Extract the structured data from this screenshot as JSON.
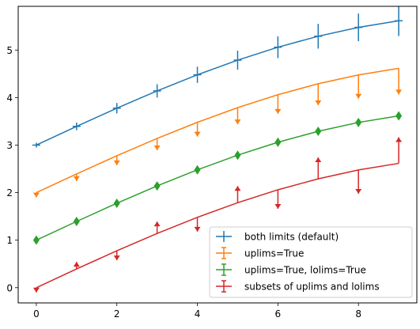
{
  "chart_data": {
    "type": "line",
    "x": [
      0,
      1,
      2,
      3,
      4,
      5,
      6,
      7,
      8,
      9
    ],
    "xlim": [
      -0.45,
      9.45
    ],
    "ylim": [
      -0.32,
      5.92
    ],
    "xticks": [
      0,
      2,
      4,
      6,
      8
    ],
    "yticks": [
      0,
      1,
      2,
      3,
      4,
      5
    ],
    "grid": false,
    "legend_position": "lower-right",
    "series": [
      {
        "name": "both limits (default)",
        "color": "#1f77b4",
        "marker": "none",
        "limits": "both",
        "y": [
          3.0,
          3.394,
          3.777,
          4.141,
          4.48,
          4.788,
          5.06,
          5.291,
          5.477,
          5.616
        ],
        "yerr": [
          0.05,
          0.08,
          0.11,
          0.14,
          0.17,
          0.2,
          0.23,
          0.26,
          0.29,
          0.32
        ]
      },
      {
        "name": "uplims=True",
        "color": "#ff7f0e",
        "marker": "none",
        "limits": "upper",
        "y": [
          2.0,
          2.394,
          2.777,
          3.141,
          3.48,
          3.788,
          4.06,
          4.291,
          4.477,
          4.616
        ],
        "yerr": [
          0.1,
          0.15,
          0.2,
          0.25,
          0.3,
          0.35,
          0.4,
          0.45,
          0.5,
          0.55
        ]
      },
      {
        "name": "uplims=True, lolims=True",
        "color": "#2ca02c",
        "marker": "diamond",
        "limits": "both-arrows",
        "y": [
          1.0,
          1.394,
          1.777,
          2.141,
          2.48,
          2.788,
          3.06,
          3.291,
          3.477,
          3.616
        ],
        "yerr": [
          0.05,
          0.05,
          0.05,
          0.05,
          0.05,
          0.05,
          0.05,
          0.05,
          0.05,
          0.05
        ]
      },
      {
        "name": "subsets of uplims and lolims",
        "color": "#d62728",
        "marker": "none",
        "limits": "mixed",
        "y": [
          0.0,
          0.394,
          0.777,
          1.141,
          1.48,
          1.788,
          2.06,
          2.291,
          2.477,
          2.616
        ],
        "yerr": [
          0.1,
          0.15,
          0.2,
          0.25,
          0.3,
          0.35,
          0.4,
          0.45,
          0.5,
          0.55
        ],
        "limit_dir": [
          "up",
          "lo",
          "up",
          "lo",
          "up",
          "lo",
          "up",
          "lo",
          "up",
          "lo"
        ]
      }
    ]
  }
}
